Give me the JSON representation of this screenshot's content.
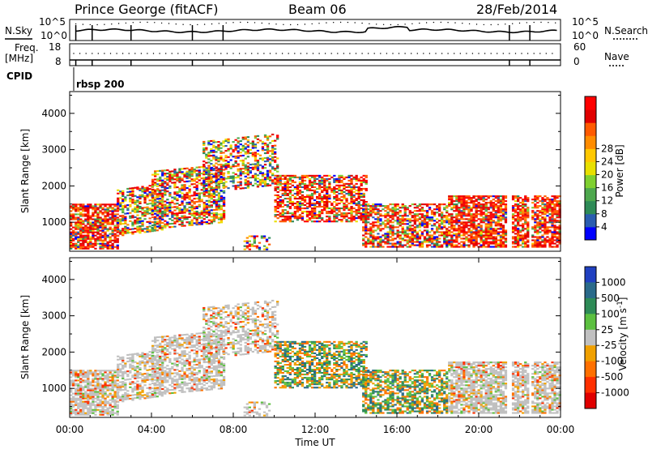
{
  "header": {
    "station": "Prince George (fitACF)",
    "beam": "Beam 06",
    "date": "28/Feb/2014"
  },
  "colors": {
    "axis": "#000000",
    "ground_scatter": "#c0c0c0",
    "background": "#ffffff"
  },
  "strip_panels": {
    "nsky": {
      "label": "N.Sky",
      "left_ticks": [
        "10^5",
        "10^0"
      ],
      "right_ticks": [
        "10^5",
        "10^0"
      ],
      "right_label": "N.Search"
    },
    "freq": {
      "label": "Freq.",
      "unit": "[MHz]",
      "left_ticks": [
        "18",
        "8"
      ],
      "right_ticks": [
        "60",
        "0"
      ],
      "right_label": "Nave"
    },
    "cpid": {
      "label": "CPID",
      "program": "rbsp 200"
    }
  },
  "chart_data": [
    {
      "type": "heatmap",
      "name": "power",
      "ylabel": "Slant Range [km]",
      "ylim": [
        200,
        4600
      ],
      "yticks": [
        "1000",
        "2000",
        "3000",
        "4000"
      ],
      "xlim": [
        0,
        24
      ],
      "colorbar": {
        "label": "Power [dB]",
        "ticks": [
          "4",
          "8",
          "12",
          "16",
          "20",
          "24",
          "28"
        ],
        "colors": [
          "#0000ff",
          "#2a5db0",
          "#2e8b57",
          "#4ea84e",
          "#7fd030",
          "#e8e000",
          "#ffc800",
          "#ff8c00",
          "#ff5a00",
          "#e00000",
          "#ff0000"
        ]
      }
    },
    {
      "type": "heatmap",
      "name": "velocity",
      "ylabel": "Slant Range [km]",
      "ylim": [
        200,
        4600
      ],
      "yticks": [
        "1000",
        "2000",
        "3000",
        "4000"
      ],
      "xlim": [
        0,
        24
      ],
      "xticks": [
        "00:00",
        "04:00",
        "08:00",
        "12:00",
        "16:00",
        "20:00",
        "00:00"
      ],
      "xlabel": "Time UT",
      "colorbar": {
        "label": "Velocity [m s",
        "unit_sup": "-1",
        "ticks": [
          "1000",
          "500",
          "100",
          "25",
          "-25",
          "-100",
          "-500",
          "-1000"
        ],
        "colors": [
          "#2040c0",
          "#2a6a8a",
          "#2e8b57",
          "#5cc040",
          "#c0c0c0",
          "#f0a000",
          "#ff7000",
          "#ff3000",
          "#e00000"
        ]
      }
    }
  ]
}
